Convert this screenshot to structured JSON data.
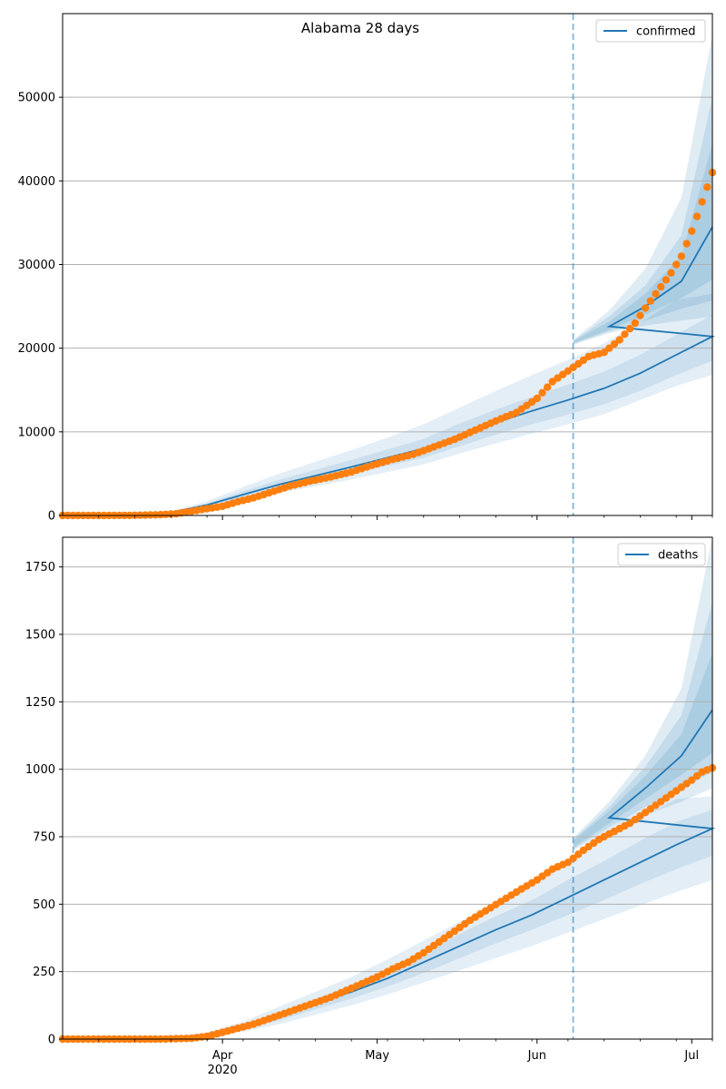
{
  "figure": {
    "title": "Alabama 28 days"
  },
  "x_axis": {
    "range": [
      "2020-03-01",
      "2020-07-05"
    ],
    "major_ticks": [
      {
        "date": "2020-04-01",
        "label": "Apr",
        "sublabel": "2020"
      },
      {
        "date": "2020-05-01",
        "label": "May",
        "sublabel": ""
      },
      {
        "date": "2020-06-01",
        "label": "Jun",
        "sublabel": ""
      },
      {
        "date": "2020-07-01",
        "label": "Jul",
        "sublabel": ""
      }
    ],
    "minor_tick_interval": "weekly",
    "forecast_start": "2020-06-08"
  },
  "colors": {
    "model_line": "#1f77b4",
    "observed_points": "#ff7f0e",
    "band": "#1f77b4",
    "forecast_divider": "#1f77b4",
    "grid": "#b0b0b0"
  },
  "chart_data": [
    {
      "type": "line",
      "title": "Alabama 28 days",
      "legend": {
        "position": "top-right",
        "label": "confirmed"
      },
      "ylim": [
        0,
        60000
      ],
      "yticks": [
        {
          "value": 0,
          "label": "0"
        },
        {
          "value": 10000,
          "label": "10000"
        },
        {
          "value": 20000,
          "label": "20000"
        },
        {
          "value": 30000,
          "label": "30000"
        },
        {
          "value": 40000,
          "label": "40000"
        },
        {
          "value": 50000,
          "label": "50000"
        }
      ],
      "grid": "horizontal",
      "model_median": [
        [
          "2020-03-01",
          0
        ],
        [
          "2020-03-15",
          80
        ],
        [
          "2020-03-22",
          350
        ],
        [
          "2020-03-29",
          1250
        ],
        [
          "2020-04-05",
          2500
        ],
        [
          "2020-04-12",
          3700
        ],
        [
          "2020-04-19",
          4750
        ],
        [
          "2020-04-26",
          5800
        ],
        [
          "2020-05-03",
          6900
        ],
        [
          "2020-05-10",
          8000
        ],
        [
          "2020-05-17",
          9600
        ],
        [
          "2020-05-24",
          11100
        ],
        [
          "2020-05-31",
          12500
        ],
        [
          "2020-06-07",
          13800
        ],
        [
          "2020-06-14",
          15200
        ],
        [
          "2020-06-21",
          17000
        ],
        [
          "2020-06-28",
          19200
        ],
        [
          "2020-07-05",
          21400
        ]
      ],
      "bands": [
        {
          "level": "outer",
          "points": [
            [
              "2020-03-01",
              0,
              0
            ],
            [
              "2020-03-22",
              250,
              500
            ],
            [
              "2020-03-29",
              900,
              1700
            ],
            [
              "2020-04-05",
              1800,
              3400
            ],
            [
              "2020-04-12",
              2700,
              5000
            ],
            [
              "2020-04-19",
              3500,
              6400
            ],
            [
              "2020-04-26",
              4300,
              7800
            ],
            [
              "2020-05-03",
              5200,
              9300
            ],
            [
              "2020-05-10",
              6100,
              10900
            ],
            [
              "2020-05-17",
              7400,
              12900
            ],
            [
              "2020-05-24",
              8600,
              14900
            ],
            [
              "2020-05-31",
              9800,
              16800
            ],
            [
              "2020-06-07",
              10900,
              18600
            ],
            [
              "2020-06-14",
              12100,
              20600
            ],
            [
              "2020-06-21",
              13800,
              23000
            ],
            [
              "2020-06-28",
              15500,
              25800
            ],
            [
              "2020-07-05",
              16800,
              26500
            ]
          ]
        },
        {
          "level": "inner",
          "points": [
            [
              "2020-03-01",
              0,
              0
            ],
            [
              "2020-03-22",
              300,
              420
            ],
            [
              "2020-03-29",
              1050,
              1450
            ],
            [
              "2020-04-05",
              2150,
              2900
            ],
            [
              "2020-04-12",
              3200,
              4250
            ],
            [
              "2020-04-19",
              4100,
              5450
            ],
            [
              "2020-04-26",
              5000,
              6650
            ],
            [
              "2020-05-03",
              5950,
              7900
            ],
            [
              "2020-05-10",
              6900,
              9150
            ],
            [
              "2020-05-17",
              8300,
              11000
            ],
            [
              "2020-05-24",
              9650,
              12650
            ],
            [
              "2020-05-31",
              10900,
              14200
            ],
            [
              "2020-06-07",
              12050,
              15650
            ],
            [
              "2020-06-14",
              13300,
              17200
            ],
            [
              "2020-06-21",
              14900,
              19200
            ],
            [
              "2020-06-28",
              16800,
              21600
            ],
            [
              "2020-07-05",
              18500,
              24000
            ]
          ]
        }
      ],
      "forecast_median": [
        [
          "2020-06-08",
          20700
        ],
        [
          "2020-06-15",
          22600
        ],
        [
          "2020-06-22",
          25000
        ],
        [
          "2020-06-29",
          28000
        ],
        [
          "2020-07-05",
          34500
        ]
      ],
      "forecast_bands": [
        {
          "level": "outer",
          "points": [
            [
              "2020-06-08",
              20400,
              21000
            ],
            [
              "2020-06-15",
              21800,
              24500
            ],
            [
              "2020-06-22",
              22700,
              29500
            ],
            [
              "2020-06-29",
              23300,
              38000
            ],
            [
              "2020-07-05",
              23800,
              57500
            ]
          ]
        },
        {
          "level": "middle",
          "points": [
            [
              "2020-06-08",
              20500,
              20900
            ],
            [
              "2020-06-15",
              22000,
              23800
            ],
            [
              "2020-06-22",
              23300,
              27500
            ],
            [
              "2020-06-29",
              24700,
              33500
            ],
            [
              "2020-07-05",
              25700,
              50000
            ]
          ]
        },
        {
          "level": "inner",
          "points": [
            [
              "2020-06-08",
              20600,
              20800
            ],
            [
              "2020-06-15",
              22200,
              23200
            ],
            [
              "2020-06-22",
              24000,
              26500
            ],
            [
              "2020-06-29",
              26000,
              31000
            ],
            [
              "2020-07-05",
              28200,
              44500
            ]
          ]
        }
      ],
      "observed": [
        [
          "2020-03-01",
          0
        ],
        [
          "2020-03-05",
          0
        ],
        [
          "2020-03-10",
          5
        ],
        [
          "2020-03-14",
          15
        ],
        [
          "2020-03-17",
          40
        ],
        [
          "2020-03-20",
          100
        ],
        [
          "2020-03-23",
          200
        ],
        [
          "2020-03-26",
          500
        ],
        [
          "2020-03-29",
          800
        ],
        [
          "2020-04-01",
          1100
        ],
        [
          "2020-04-04",
          1650
        ],
        [
          "2020-04-07",
          2100
        ],
        [
          "2020-04-10",
          2700
        ],
        [
          "2020-04-14",
          3500
        ],
        [
          "2020-04-18",
          4100
        ],
        [
          "2020-04-22",
          4600
        ],
        [
          "2020-04-26",
          5200
        ],
        [
          "2020-04-30",
          6000
        ],
        [
          "2020-05-04",
          6700
        ],
        [
          "2020-05-08",
          7300
        ],
        [
          "2020-05-12",
          8200
        ],
        [
          "2020-05-16",
          9100
        ],
        [
          "2020-05-20",
          10200
        ],
        [
          "2020-05-24",
          11300
        ],
        [
          "2020-05-28",
          12300
        ],
        [
          "2020-06-01",
          14000
        ],
        [
          "2020-06-04",
          16000
        ],
        [
          "2020-06-08",
          17700
        ],
        [
          "2020-06-11",
          19000
        ],
        [
          "2020-06-14",
          19500
        ],
        [
          "2020-06-17",
          21000
        ],
        [
          "2020-06-20",
          23000
        ],
        [
          "2020-06-22",
          24800
        ],
        [
          "2020-06-24",
          26500
        ],
        [
          "2020-06-27",
          29000
        ],
        [
          "2020-06-29",
          31000
        ],
        [
          "2020-07-01",
          34000
        ],
        [
          "2020-07-03",
          37500
        ],
        [
          "2020-07-05",
          41000
        ]
      ]
    },
    {
      "type": "line",
      "legend": {
        "position": "top-right",
        "label": "deaths"
      },
      "ylim": [
        0,
        1860
      ],
      "yticks": [
        {
          "value": 0,
          "label": "0"
        },
        {
          "value": 250,
          "label": "250"
        },
        {
          "value": 500,
          "label": "500"
        },
        {
          "value": 750,
          "label": "750"
        },
        {
          "value": 1000,
          "label": "1000"
        },
        {
          "value": 1250,
          "label": "1250"
        },
        {
          "value": 1500,
          "label": "1500"
        },
        {
          "value": 1750,
          "label": "1750"
        }
      ],
      "grid": "horizontal",
      "model_median": [
        [
          "2020-03-01",
          0
        ],
        [
          "2020-03-22",
          5
        ],
        [
          "2020-03-29",
          15
        ],
        [
          "2020-04-05",
          45
        ],
        [
          "2020-04-12",
          85
        ],
        [
          "2020-04-19",
          130
        ],
        [
          "2020-04-26",
          175
        ],
        [
          "2020-05-03",
          225
        ],
        [
          "2020-05-10",
          285
        ],
        [
          "2020-05-17",
          345
        ],
        [
          "2020-05-24",
          405
        ],
        [
          "2020-05-31",
          460
        ],
        [
          "2020-06-07",
          525
        ],
        [
          "2020-06-14",
          590
        ],
        [
          "2020-06-21",
          655
        ],
        [
          "2020-06-28",
          720
        ],
        [
          "2020-07-05",
          780
        ]
      ],
      "bands": [
        {
          "level": "outer",
          "points": [
            [
              "2020-03-01",
              0,
              0
            ],
            [
              "2020-03-22",
              2,
              10
            ],
            [
              "2020-03-29",
              8,
              25
            ],
            [
              "2020-04-05",
              28,
              65
            ],
            [
              "2020-04-12",
              55,
              120
            ],
            [
              "2020-04-19",
              90,
              175
            ],
            [
              "2020-04-26",
              125,
              230
            ],
            [
              "2020-05-03",
              165,
              295
            ],
            [
              "2020-05-10",
              210,
              365
            ],
            [
              "2020-05-17",
              255,
              435
            ],
            [
              "2020-05-24",
              300,
              510
            ],
            [
              "2020-05-31",
              345,
              580
            ],
            [
              "2020-06-07",
              395,
              660
            ],
            [
              "2020-06-14",
              445,
              740
            ],
            [
              "2020-06-21",
              495,
              820
            ],
            [
              "2020-06-28",
              545,
              890
            ],
            [
              "2020-07-05",
              590,
              900
            ]
          ]
        },
        {
          "level": "inner",
          "points": [
            [
              "2020-03-01",
              0,
              0
            ],
            [
              "2020-03-22",
              3,
              8
            ],
            [
              "2020-03-29",
              11,
              20
            ],
            [
              "2020-04-05",
              36,
              55
            ],
            [
              "2020-04-12",
              70,
              100
            ],
            [
              "2020-04-19",
              110,
              150
            ],
            [
              "2020-04-26",
              150,
              200
            ],
            [
              "2020-05-03",
              195,
              255
            ],
            [
              "2020-05-10",
              245,
              320
            ],
            [
              "2020-05-17",
              300,
              390
            ],
            [
              "2020-05-24",
              355,
              455
            ],
            [
              "2020-05-31",
              405,
              515
            ],
            [
              "2020-06-07",
              460,
              590
            ],
            [
              "2020-06-14",
              515,
              660
            ],
            [
              "2020-06-21",
              575,
              735
            ],
            [
              "2020-06-28",
              630,
              805
            ],
            [
              "2020-07-05",
              680,
              850
            ]
          ]
        }
      ],
      "forecast_median": [
        [
          "2020-06-08",
          720
        ],
        [
          "2020-06-15",
          820
        ],
        [
          "2020-06-22",
          930
        ],
        [
          "2020-06-29",
          1050
        ],
        [
          "2020-07-05",
          1220
        ]
      ],
      "forecast_bands": [
        {
          "level": "outer",
          "points": [
            [
              "2020-06-08",
              700,
              745
            ],
            [
              "2020-06-15",
              770,
              880
            ],
            [
              "2020-06-22",
              830,
              1050
            ],
            [
              "2020-06-29",
              880,
              1300
            ],
            [
              "2020-07-05",
              930,
              1860
            ]
          ]
        },
        {
          "level": "middle",
          "points": [
            [
              "2020-06-08",
              705,
              740
            ],
            [
              "2020-06-15",
              785,
              860
            ],
            [
              "2020-06-22",
              860,
              1010
            ],
            [
              "2020-06-29",
              930,
              1200
            ],
            [
              "2020-07-05",
              990,
              1620
            ]
          ]
        },
        {
          "level": "inner",
          "points": [
            [
              "2020-06-08",
              710,
              735
            ],
            [
              "2020-06-15",
              800,
              845
            ],
            [
              "2020-06-22",
              890,
              975
            ],
            [
              "2020-06-29",
              980,
              1130
            ],
            [
              "2020-07-05",
              1060,
              1430
            ]
          ]
        }
      ],
      "observed": [
        [
          "2020-03-01",
          0
        ],
        [
          "2020-03-10",
          0
        ],
        [
          "2020-03-20",
          0
        ],
        [
          "2020-03-26",
          3
        ],
        [
          "2020-03-29",
          10
        ],
        [
          "2020-04-01",
          25
        ],
        [
          "2020-04-04",
          40
        ],
        [
          "2020-04-07",
          55
        ],
        [
          "2020-04-10",
          75
        ],
        [
          "2020-04-13",
          95
        ],
        [
          "2020-04-16",
          115
        ],
        [
          "2020-04-19",
          135
        ],
        [
          "2020-04-22",
          155
        ],
        [
          "2020-04-25",
          180
        ],
        [
          "2020-04-28",
          205
        ],
        [
          "2020-05-01",
          230
        ],
        [
          "2020-05-04",
          260
        ],
        [
          "2020-05-07",
          285
        ],
        [
          "2020-05-10",
          320
        ],
        [
          "2020-05-13",
          360
        ],
        [
          "2020-05-16",
          400
        ],
        [
          "2020-05-19",
          440
        ],
        [
          "2020-05-22",
          475
        ],
        [
          "2020-05-25",
          510
        ],
        [
          "2020-05-28",
          545
        ],
        [
          "2020-06-01",
          590
        ],
        [
          "2020-06-04",
          630
        ],
        [
          "2020-06-07",
          655
        ],
        [
          "2020-06-10",
          700
        ],
        [
          "2020-06-13",
          740
        ],
        [
          "2020-06-16",
          770
        ],
        [
          "2020-06-19",
          800
        ],
        [
          "2020-06-22",
          840
        ],
        [
          "2020-06-25",
          880
        ],
        [
          "2020-06-28",
          920
        ],
        [
          "2020-07-01",
          960
        ],
        [
          "2020-07-03",
          990
        ],
        [
          "2020-07-05",
          1005
        ]
      ]
    }
  ]
}
